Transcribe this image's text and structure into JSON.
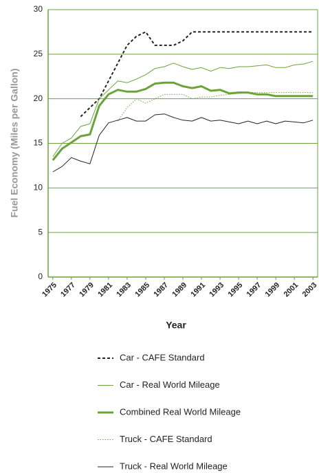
{
  "chart_data": {
    "type": "line",
    "x_label": "Year",
    "y_label": "Fuel Economy (Miles per Gallon)",
    "x": [
      1975,
      1976,
      1977,
      1978,
      1979,
      1980,
      1981,
      1982,
      1983,
      1984,
      1985,
      1986,
      1987,
      1988,
      1989,
      1990,
      1991,
      1992,
      1993,
      1994,
      1995,
      1996,
      1997,
      1998,
      1999,
      2000,
      2001,
      2002,
      2003
    ],
    "xlim": [
      1974.5,
      2003.5
    ],
    "xticks": [
      1975,
      1977,
      1979,
      1981,
      1983,
      1985,
      1987,
      1989,
      1991,
      1993,
      1995,
      1997,
      1999,
      2001,
      2003
    ],
    "ylim": [
      0,
      30
    ],
    "yticks": [
      0,
      5,
      10,
      15,
      20,
      25,
      30
    ],
    "grid": true,
    "frame_color": "#6aa33b",
    "legend": "bottom",
    "series": [
      {
        "name": "Car - CAFE Standard",
        "color": "#222222",
        "style": "dashed",
        "width": 2,
        "values": [
          null,
          null,
          null,
          18,
          19,
          20,
          22,
          24,
          26,
          27,
          27.5,
          26,
          26,
          26,
          26.5,
          27.5,
          27.5,
          27.5,
          27.5,
          27.5,
          27.5,
          27.5,
          27.5,
          27.5,
          27.5,
          27.5,
          27.5,
          27.5,
          27.5
        ]
      },
      {
        "name": "Car - Real World Mileage",
        "color": "#6aa33b",
        "style": "solid",
        "width": 1,
        "values": [
          13.5,
          15,
          15.6,
          16.9,
          17.2,
          20,
          21,
          22,
          21.8,
          22.2,
          22.7,
          23.4,
          23.6,
          24,
          23.6,
          23.3,
          23.5,
          23.1,
          23.5,
          23.4,
          23.6,
          23.6,
          23.7,
          23.8,
          23.5,
          23.5,
          23.8,
          23.9,
          24.2
        ]
      },
      {
        "name": "Combined Real World  Mileage",
        "color": "#6aa33b",
        "style": "solid",
        "width": 3,
        "values": [
          13.1,
          14.4,
          15.1,
          15.8,
          16,
          19.2,
          20.5,
          21,
          20.8,
          20.8,
          21.1,
          21.7,
          21.8,
          21.8,
          21.4,
          21.2,
          21.4,
          20.9,
          21,
          20.6,
          20.7,
          20.7,
          20.5,
          20.5,
          20.3,
          20.3,
          20.3,
          20.3,
          20.3
        ]
      },
      {
        "name": "Truck - CAFE Standard",
        "color": "#6aa33b",
        "style": "dotted",
        "width": 1,
        "values": [
          null,
          null,
          null,
          null,
          null,
          null,
          null,
          17.5,
          19,
          20,
          19.5,
          20,
          20.5,
          20.5,
          20.5,
          20,
          20.2,
          20.2,
          20.4,
          20.5,
          20.6,
          20.7,
          20.7,
          20.7,
          20.7,
          20.7,
          20.7,
          20.7,
          20.7
        ]
      },
      {
        "name": "Truck - Real World Mileage",
        "color": "#222222",
        "style": "solid",
        "width": 1,
        "values": [
          11.8,
          12.4,
          13.4,
          13,
          12.7,
          15.9,
          17.3,
          17.6,
          17.9,
          17.5,
          17.5,
          18.2,
          18.3,
          17.9,
          17.6,
          17.5,
          17.9,
          17.5,
          17.6,
          17.4,
          17.2,
          17.5,
          17.2,
          17.5,
          17.2,
          17.5,
          17.4,
          17.3,
          17.6
        ]
      }
    ]
  }
}
